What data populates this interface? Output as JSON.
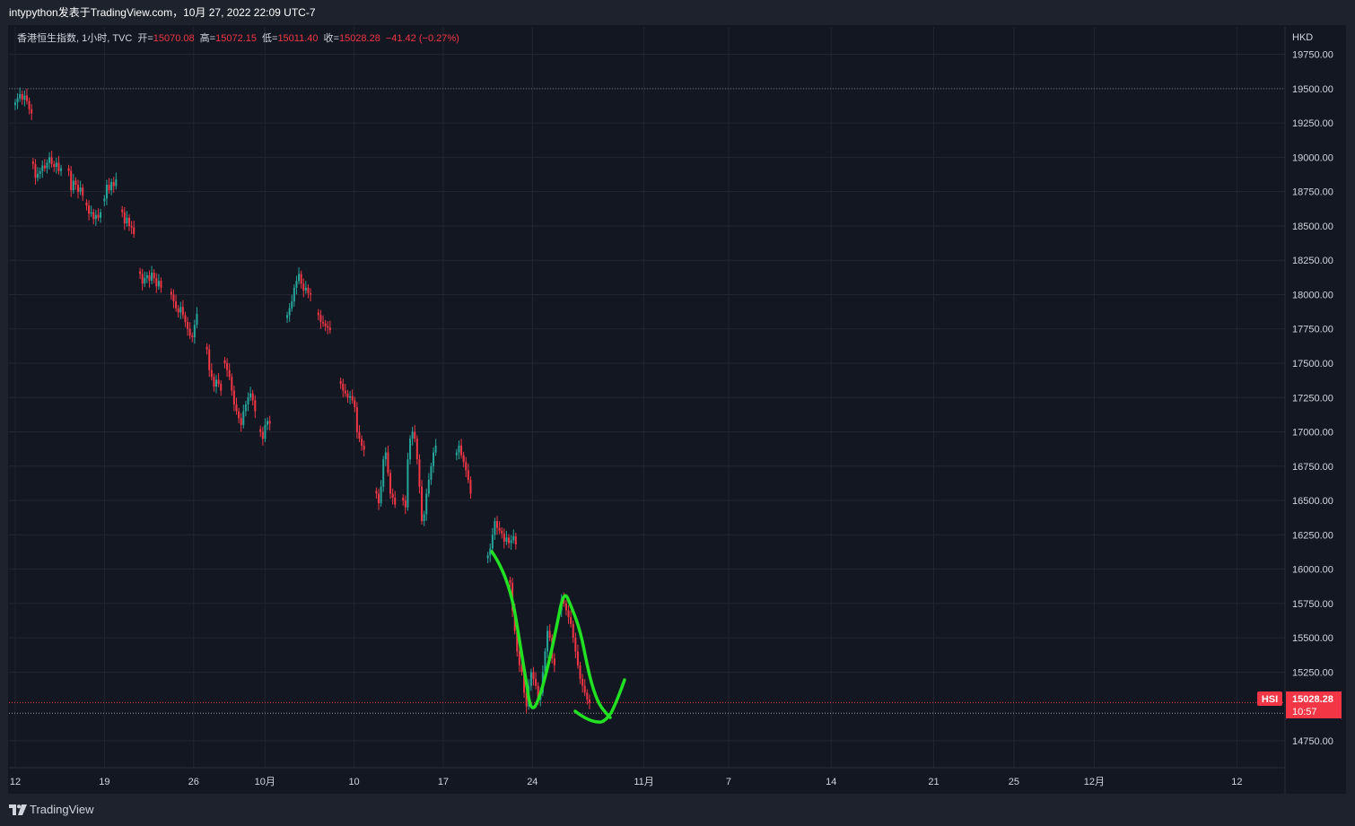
{
  "header": {
    "publisher_line": "intypython发表于TradingView.com，10月 27, 2022 22:09 UTC-7"
  },
  "legend": {
    "symbol_line": "香港恒生指数, 1小时, TVC",
    "open_label": "开=",
    "open_value": "15070.08",
    "high_label": "高=",
    "high_value": "15072.15",
    "low_label": "低=",
    "low_value": "15011.40",
    "close_label": "收=",
    "close_value": "15028.28",
    "change": "−41.42 (−0.27%)"
  },
  "price_badge": {
    "symbol": "HSI",
    "price": "15028.28",
    "countdown": "10:57"
  },
  "footer": {
    "brand": "TradingView"
  },
  "colors": {
    "up": "#26a69a",
    "down": "#f23645",
    "annotation": "#22e022",
    "background": "#131722",
    "grid": "#232632"
  },
  "chart_data": {
    "type": "candlestick",
    "symbol": "HSI",
    "interval": "1小时",
    "currency_label": "HKD",
    "y_range": [
      14560,
      19950
    ],
    "y_ticks": [
      "19750.00",
      "19500.00",
      "19250.00",
      "19000.00",
      "18750.00",
      "18500.00",
      "18250.00",
      "18000.00",
      "17750.00",
      "17500.00",
      "17250.00",
      "17000.00",
      "16750.00",
      "16500.00",
      "16250.00",
      "16000.00",
      "15750.00",
      "15500.00",
      "15250.00",
      "14750.00"
    ],
    "y_tick_values": [
      19750,
      19500,
      19250,
      19000,
      18750,
      18500,
      18250,
      18000,
      17750,
      17500,
      17250,
      17000,
      16750,
      16500,
      16250,
      16000,
      15750,
      15500,
      15250,
      14750
    ],
    "x_ticks": [
      {
        "label": "12",
        "index": 0
      },
      {
        "label": "19",
        "index": 10
      },
      {
        "label": "26",
        "index": 20
      },
      {
        "label": "10月",
        "index": 28
      },
      {
        "label": "10",
        "index": 38
      },
      {
        "label": "17",
        "index": 48
      },
      {
        "label": "24",
        "index": 58
      },
      {
        "label": "11月",
        "index": 70.5
      },
      {
        "label": "7",
        "index": 80
      },
      {
        "label": "14",
        "index": 91.5
      },
      {
        "label": "21",
        "index": 103
      },
      {
        "label": "25",
        "index": 112
      },
      {
        "label": "12月",
        "index": 121
      },
      {
        "label": "12",
        "index": 137
      }
    ],
    "x_index_range": [
      -0.5,
      142.4
    ],
    "grid": true,
    "current_price": 15028.28,
    "reference_level": 19500,
    "low_level": 14950,
    "sessions": [
      {
        "index": 0,
        "closes": [
          19400,
          19430,
          19460,
          19420,
          19450,
          19410,
          19350,
          19320
        ]
      },
      {
        "index": 2,
        "closes": [
          18950,
          18850,
          18880,
          18900,
          18940,
          18920,
          18960,
          19000,
          18950,
          18930,
          18960,
          18900,
          18920
        ]
      },
      {
        "index": 6,
        "closes": [
          18900,
          18760,
          18830,
          18800,
          18750,
          18780,
          18720
        ]
      },
      {
        "index": 8,
        "closes": [
          18650,
          18590,
          18600,
          18550,
          18580,
          18560,
          18600
        ]
      },
      {
        "index": 10,
        "closes": [
          18700,
          18800,
          18760,
          18820,
          18790,
          18840
        ]
      },
      {
        "index": 12,
        "closes": [
          18600,
          18520,
          18560,
          18500,
          18490,
          18440
        ]
      },
      {
        "index": 14,
        "closes": [
          18150,
          18080,
          18120,
          18140,
          18100,
          18160,
          18120,
          18060,
          18100,
          18050
        ]
      },
      {
        "index": 17.5,
        "closes": [
          18000,
          17950,
          17900,
          17870,
          17910,
          17850,
          17800,
          17750,
          17700,
          17690,
          17780,
          17860
        ]
      },
      {
        "index": 21.5,
        "closes": [
          17600,
          17450,
          17400,
          17330,
          17380,
          17350,
          17300
        ]
      },
      {
        "index": 23.5,
        "closes": [
          17500,
          17450,
          17400,
          17300,
          17200,
          17150,
          17100,
          17050,
          17150,
          17200,
          17250,
          17280,
          17230,
          17150
        ]
      },
      {
        "index": 27.5,
        "closes": [
          17000,
          16950,
          17050,
          17080,
          17060
        ]
      },
      {
        "index": 30.5,
        "closes": [
          17850,
          17900,
          17950,
          18050,
          18100,
          18150,
          18080,
          18030,
          18050,
          18010,
          18000
        ]
      },
      {
        "index": 34,
        "closes": [
          17850,
          17800,
          17790,
          17770,
          17760,
          17740
        ]
      },
      {
        "index": 36.5,
        "closes": [
          17350,
          17300,
          17280,
          17250,
          17260,
          17230,
          17180,
          17000,
          16950,
          16900,
          16870
        ]
      },
      {
        "index": 40.5,
        "closes": [
          16550,
          16480,
          16600,
          16800,
          16850,
          16700,
          16550,
          16520,
          16470
        ]
      },
      {
        "index": 43.5,
        "closes": [
          16500,
          16450,
          16800,
          16950,
          17000,
          16950,
          16800,
          16600,
          16350,
          16400,
          16550,
          16650,
          16750,
          16850,
          16900
        ]
      },
      {
        "index": 49.5,
        "closes": [
          16850,
          16900,
          16830,
          16780,
          16720,
          16650,
          16550
        ]
      },
      {
        "index": 53,
        "closes": [
          16100,
          16150,
          16250,
          16350,
          16300,
          16280,
          16260,
          16200,
          16230,
          16190,
          16210,
          16240,
          16180
        ]
      },
      {
        "index": 55.5,
        "closes": [
          15900,
          15700,
          15550,
          15400,
          15300,
          15250,
          15100,
          15000,
          15150,
          15250,
          15200,
          15150,
          15050,
          15100,
          15250,
          15400,
          15550,
          15500,
          15350,
          15300
        ]
      },
      {
        "index": 61,
        "closes": [
          15700,
          15780,
          15750,
          15700,
          15650,
          15600,
          15500,
          15400,
          15300,
          15200,
          15150,
          15100,
          15050,
          15028.28
        ]
      }
    ]
  }
}
